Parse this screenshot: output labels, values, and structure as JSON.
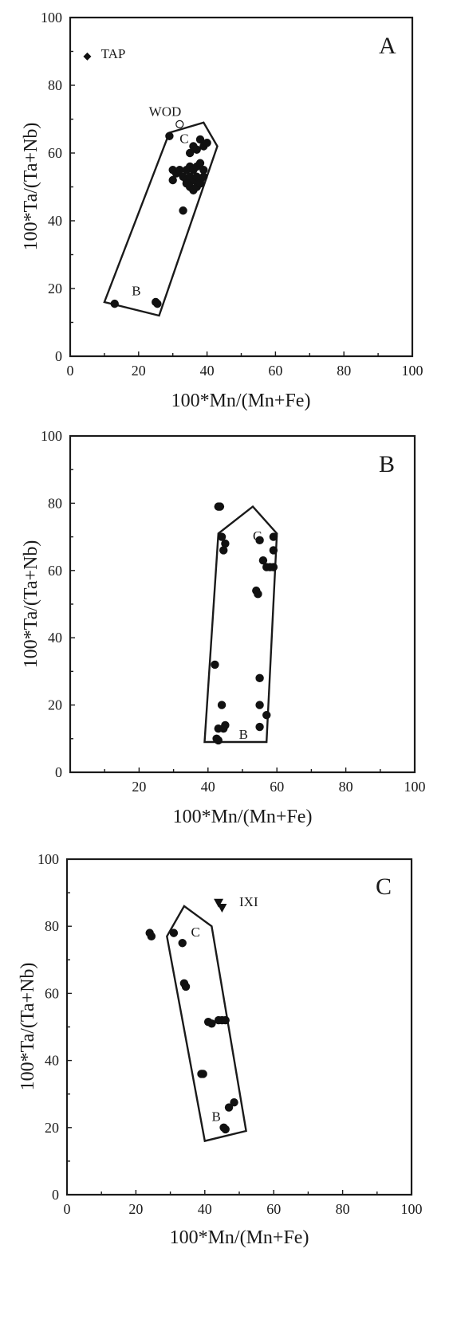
{
  "chart_data": [
    {
      "type": "scatter",
      "panel_label": "A",
      "xlabel": "100*Mn/(Mn+Fe)",
      "ylabel": "100*Ta/(Ta+Nb)",
      "xlim": [
        0,
        100
      ],
      "ylim": [
        0,
        100
      ],
      "x_ticks": [
        0,
        20,
        40,
        60,
        80,
        100
      ],
      "y_ticks": [
        0,
        20,
        40,
        60,
        80,
        100
      ],
      "grid": false,
      "field_outline": [
        [
          10,
          16
        ],
        [
          29,
          66
        ],
        [
          39,
          69
        ],
        [
          43,
          62
        ],
        [
          26,
          12
        ]
      ],
      "annotations": [
        {
          "text": "TAP",
          "x": 9,
          "y": 88
        },
        {
          "text": "WOD",
          "x": 23,
          "y": 71
        },
        {
          "text": "C",
          "x": 32,
          "y": 63
        },
        {
          "text": "B",
          "x": 18,
          "y": 18
        }
      ],
      "series": [
        {
          "name": "TAP",
          "marker": "diamond",
          "points": [
            [
              5,
              88.5
            ]
          ]
        },
        {
          "name": "WOD",
          "marker": "open-circle",
          "points": [
            [
              32,
              68.5
            ]
          ]
        },
        {
          "name": "",
          "marker": "circle",
          "points": [
            [
              29,
              65
            ],
            [
              38,
              64
            ],
            [
              39,
              62
            ],
            [
              40,
              63
            ],
            [
              36,
              62
            ],
            [
              35,
              60
            ],
            [
              37,
              61
            ],
            [
              30,
              55
            ],
            [
              31,
              54
            ],
            [
              32,
              55
            ],
            [
              34,
              55
            ],
            [
              35,
              56
            ],
            [
              36,
              55
            ],
            [
              37,
              56
            ],
            [
              38,
              57
            ],
            [
              39,
              55
            ],
            [
              30,
              52
            ],
            [
              33,
              53
            ],
            [
              34,
              52
            ],
            [
              35,
              53
            ],
            [
              36,
              52
            ],
            [
              37,
              53
            ],
            [
              38,
              52
            ],
            [
              39,
              53
            ],
            [
              34,
              51
            ],
            [
              35,
              50
            ],
            [
              36,
              49
            ],
            [
              37,
              50
            ],
            [
              38,
              51
            ],
            [
              33,
              43
            ],
            [
              13,
              15.5
            ],
            [
              25,
              16
            ],
            [
              25.5,
              15.5
            ]
          ]
        }
      ]
    },
    {
      "type": "scatter",
      "panel_label": "B",
      "xlabel": "100*Mn/(Mn+Fe)",
      "ylabel": "100*Ta/(Ta+Nb)",
      "xlim": [
        0,
        100
      ],
      "ylim": [
        0,
        100
      ],
      "x_ticks": [
        20,
        40,
        60,
        80,
        100
      ],
      "y_ticks": [
        0,
        20,
        40,
        60,
        80,
        100
      ],
      "grid": false,
      "field_outline": [
        [
          39,
          9
        ],
        [
          43,
          71
        ],
        [
          53,
          79
        ],
        [
          60,
          71
        ],
        [
          57,
          9
        ]
      ],
      "annotations": [
        {
          "text": "C",
          "x": 53,
          "y": 69
        },
        {
          "text": "B",
          "x": 49,
          "y": 10
        }
      ],
      "series": [
        {
          "name": "",
          "marker": "circle",
          "points": [
            [
              43,
              79
            ],
            [
              43.5,
              79
            ],
            [
              44,
              70
            ],
            [
              45,
              68
            ],
            [
              44.5,
              66
            ],
            [
              55,
              69
            ],
            [
              56,
              63
            ],
            [
              57,
              61
            ],
            [
              58,
              61
            ],
            [
              59,
              70
            ],
            [
              59,
              66
            ],
            [
              59,
              61
            ],
            [
              54,
              54
            ],
            [
              54.5,
              53
            ],
            [
              42,
              32
            ],
            [
              44,
              20
            ],
            [
              55,
              28
            ],
            [
              55,
              20
            ],
            [
              57,
              17
            ],
            [
              43,
              13
            ],
            [
              44.5,
              13
            ],
            [
              45,
              14
            ],
            [
              42.5,
              10
            ],
            [
              43,
              9.5
            ],
            [
              55,
              13.5
            ]
          ]
        }
      ]
    },
    {
      "type": "scatter",
      "panel_label": "C",
      "xlabel": "100*Mn/(Mn+Fe)",
      "ylabel": "100*Ta/(Ta+Nb)",
      "xlim": [
        0,
        100
      ],
      "ylim": [
        0,
        100
      ],
      "x_ticks": [
        0,
        20,
        40,
        60,
        80,
        100
      ],
      "y_ticks": [
        0,
        20,
        40,
        60,
        80,
        100
      ],
      "grid": false,
      "field_outline": [
        [
          29,
          77
        ],
        [
          34,
          86
        ],
        [
          42,
          80
        ],
        [
          52,
          19
        ],
        [
          40,
          16
        ]
      ],
      "annotations": [
        {
          "text": "IXI",
          "x": 50,
          "y": 86
        },
        {
          "text": "C",
          "x": 36,
          "y": 77
        },
        {
          "text": "B",
          "x": 42,
          "y": 22
        }
      ],
      "series": [
        {
          "name": "IXI",
          "marker": "triangle-down",
          "points": [
            [
              44,
              87
            ],
            [
              45,
              85.5
            ]
          ]
        },
        {
          "name": "",
          "marker": "circle",
          "points": [
            [
              24,
              78
            ],
            [
              24.5,
              77
            ],
            [
              31,
              78
            ],
            [
              33.5,
              75
            ],
            [
              34,
              63
            ],
            [
              34.5,
              62
            ],
            [
              41,
              51.5
            ],
            [
              42,
              51
            ],
            [
              44,
              52
            ],
            [
              45,
              52
            ],
            [
              46,
              52
            ],
            [
              39,
              36
            ],
            [
              39.5,
              36
            ],
            [
              47,
              26
            ],
            [
              48.5,
              27.5
            ],
            [
              45.5,
              20
            ],
            [
              46,
              19.5
            ]
          ]
        }
      ]
    }
  ]
}
